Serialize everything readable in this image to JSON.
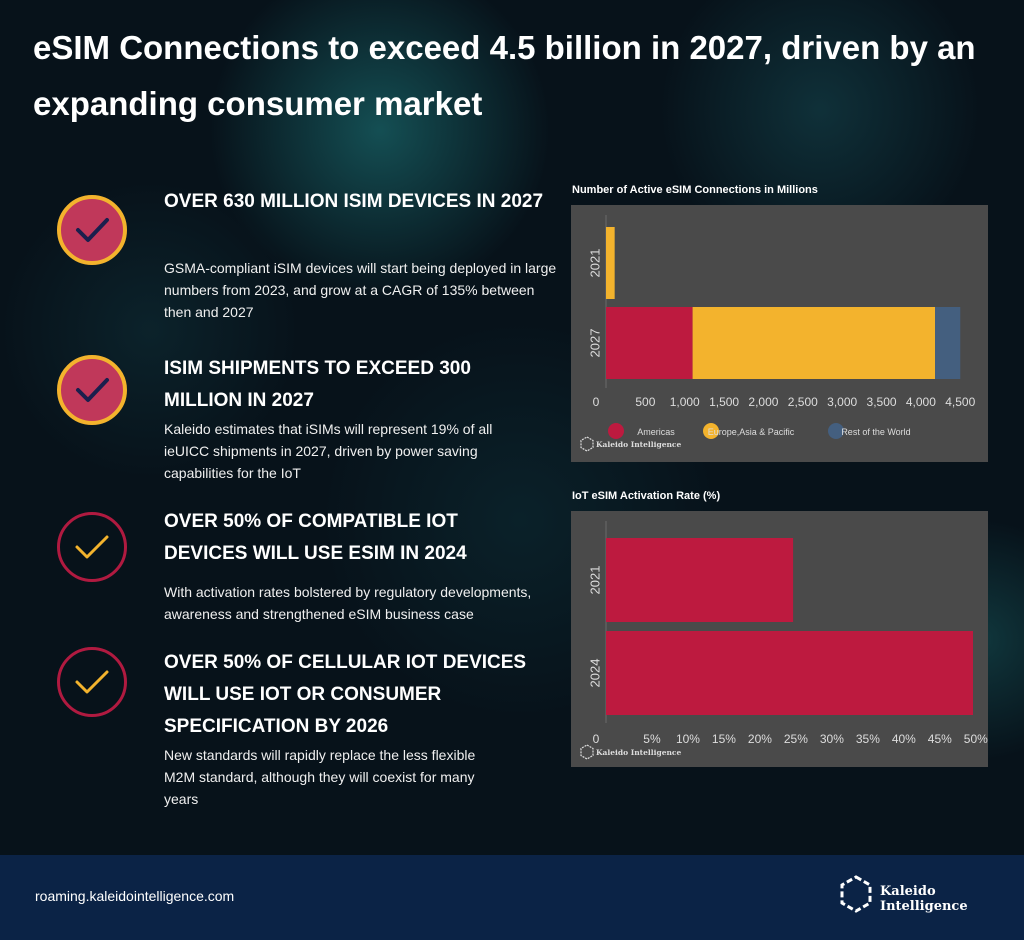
{
  "title": "eSIM Connections to exceed 4.5 billion in 2027, driven by an expanding consumer market",
  "items": [
    {
      "heading": "OVER 630 MILLION ISIM DEVICES IN 2027",
      "body": "GSMA-compliant iSIM devices will start being deployed in large numbers from 2023, and grow at a CAGR of 135% between then and 2027"
    },
    {
      "heading": "ISIM SHIPMENTS TO EXCEED 300 MILLION IN 2027",
      "body": "Kaleido estimates that iSIMs will represent 19% of all ieUICC shipments in 2027, driven by power saving capabilities for the IoT"
    },
    {
      "heading": "OVER 50% OF COMPATIBLE IOT DEVICES WILL USE ESIM IN 2024",
      "body": "With activation rates bolstered by regulatory developments, awareness and strengthened eSIM business case"
    },
    {
      "heading": "OVER 50% OF CELLULAR IOT DEVICES WILL USE IOT OR CONSUMER SPECIFICATION BY 2026",
      "body": "New standards will rapidly replace the less flexible M2M standard, although they will coexist for many years"
    }
  ],
  "chart_data": [
    {
      "type": "bar",
      "orientation": "horizontal",
      "stacked": true,
      "title": "Number of Active eSIM Connections in Millions",
      "categories": [
        "2021",
        "2027"
      ],
      "series": [
        {
          "name": "Americas",
          "color": "#bd1a3f",
          "values": [
            0,
            1100
          ]
        },
        {
          "name": "Europe,Asia & Pacific",
          "color": "#f3b32d",
          "values": [
            110,
            3080
          ]
        },
        {
          "name": "Rest of the World",
          "color": "#445f7f",
          "values": [
            0,
            320
          ]
        }
      ],
      "xlim": [
        0,
        4700
      ],
      "xticks": [
        "0",
        "500",
        "1,000",
        "1,500",
        "2,000",
        "2,500",
        "3,000",
        "3,500",
        "4,000",
        "4,500"
      ],
      "legend_position": "bottom",
      "watermark": "Kaleido Intelligence"
    },
    {
      "type": "bar",
      "orientation": "horizontal",
      "title": "IoT eSIM Activation Rate (%)",
      "categories": [
        "2021",
        "2024"
      ],
      "series": [
        {
          "color": "#bd1a3f",
          "values": [
            26,
            51
          ]
        }
      ],
      "xlim": [
        0,
        51
      ],
      "xticks": [
        "0",
        "5%",
        "10%",
        "15%",
        "20%",
        "25%",
        "30%",
        "35%",
        "40%",
        "45%",
        "50%"
      ],
      "watermark": "Kaleido Intelligence"
    }
  ],
  "footer": {
    "url": "roaming.kaleidointelligence.com",
    "brand": "Kaleido Intelligence"
  }
}
